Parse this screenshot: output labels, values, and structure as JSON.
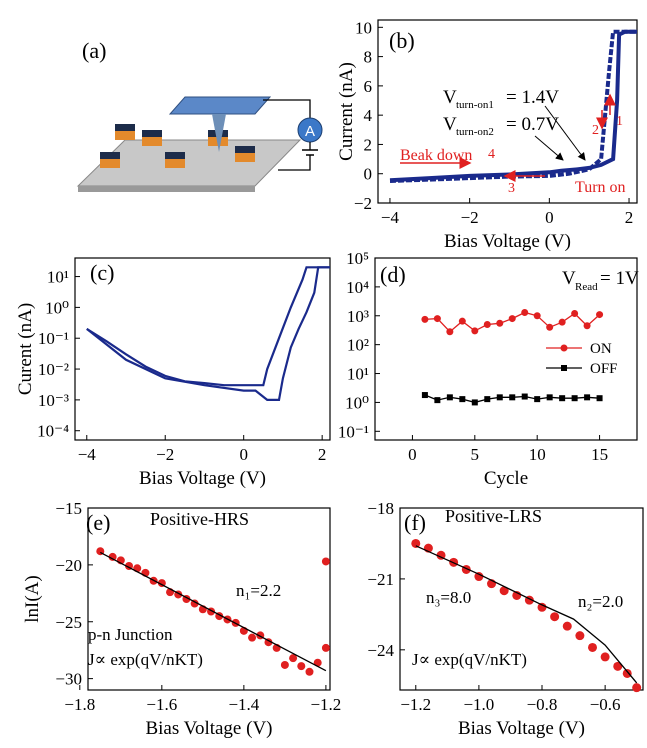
{
  "panels": {
    "a": {
      "label": "(a)",
      "meter_label": "A"
    },
    "b": {
      "label": "(b)",
      "xlabel": "Bias Voltage (V)",
      "ylabel": "Current (nA)",
      "von1_main": "V",
      "von1_sub": "turn-on1",
      "von1_val": "= 1.4V",
      "von2_main": "V",
      "von2_sub": "turn-on2",
      "von2_val": "= 0.7V",
      "breakdown": "Beak down",
      "turnon": "Turn on",
      "arrow_numbers": [
        "1",
        "2",
        "3",
        "4"
      ]
    },
    "c": {
      "label": "(c)",
      "xlabel": "Bias Voltage (V)",
      "ylabel": "Curent (nA)"
    },
    "d": {
      "label": "(d)",
      "xlabel": "Cycle",
      "vread_main": "V",
      "vread_sub": "Read",
      "vread_val": "= 1V",
      "legend_on": "ON",
      "legend_off": "OFF"
    },
    "e": {
      "label": "(e)",
      "title": "Positive-HRS",
      "xlabel": "Bias Voltage (V)",
      "ylabel": "lnI(A)",
      "n1": "n₁=2.2",
      "pn": "p-n Junction",
      "eq": "J∝ exp(qV/nKT)"
    },
    "f": {
      "label": "(f)",
      "title": "Positive-LRS",
      "xlabel": "Bias Voltage (V)",
      "n3": "n₃=8.0",
      "n2": "n₂=2.0",
      "eq": "J∝ exp(qV/nKT)"
    }
  },
  "colors": {
    "blue": "#1a2a8c",
    "red": "#e02020",
    "black": "#000000",
    "arrow_red": "#e02020"
  },
  "chart_data": [
    {
      "panel": "b",
      "type": "line",
      "xlim": [
        -4.3,
        2.2
      ],
      "ylim": [
        -2,
        10.5
      ],
      "xticks": [
        -4,
        -2,
        0,
        2
      ],
      "yticks": [
        -2,
        0,
        2,
        4,
        6,
        8,
        10
      ],
      "series": [
        {
          "x": [
            -4,
            -3,
            -2,
            -1,
            0,
            0.5,
            1,
            1.3,
            1.4,
            1.5,
            1.6,
            2.2
          ],
          "y": [
            -0.5,
            -0.4,
            -0.3,
            -0.2,
            -0.15,
            0,
            0.3,
            1,
            4,
            7,
            9.7,
            9.7
          ]
        },
        {
          "x": [
            2.2,
            1.9,
            1.75,
            1.7,
            1.6,
            1.3,
            1,
            0.7,
            0.3,
            0,
            -1,
            -2,
            -3,
            -4
          ],
          "y": [
            9.7,
            9.7,
            9.5,
            5,
            1,
            0.6,
            0.4,
            0.3,
            0.2,
            0.1,
            -0.05,
            -0.15,
            -0.3,
            -0.45
          ]
        }
      ]
    },
    {
      "panel": "c",
      "type": "line",
      "yscale": "log",
      "xlim": [
        -4.3,
        2.2
      ],
      "ylim": [
        5e-05,
        40
      ],
      "xticks": [
        -4,
        -2,
        0,
        2
      ],
      "yticks": [
        0.0001,
        0.001,
        0.01,
        0.1,
        1,
        10
      ],
      "ytick_labels": [
        "10⁻⁴",
        "10⁻³",
        "10⁻²",
        "10⁻¹",
        "10⁰",
        "10¹"
      ],
      "series": [
        {
          "x": [
            -4,
            -3.5,
            -3,
            -2.5,
            -2,
            -1.5,
            -1,
            -0.5,
            0,
            0.3,
            0.5,
            0.6,
            0.9,
            1.2,
            1.5,
            1.6,
            1.7,
            2.2
          ],
          "y": [
            0.2,
            0.08,
            0.03,
            0.012,
            0.006,
            0.004,
            0.0035,
            0.003,
            0.003,
            0.003,
            0.003,
            0.01,
            0.1,
            1,
            8,
            20,
            20,
            20
          ]
        },
        {
          "x": [
            2.2,
            1.9,
            1.8,
            1.6,
            1.4,
            1.2,
            1,
            0.9,
            0.6,
            0.3,
            0,
            -1,
            -2,
            -3,
            -4
          ],
          "y": [
            20,
            20,
            3,
            0.7,
            0.2,
            0.05,
            0.005,
            0.001,
            0.001,
            0.002,
            0.002,
            0.003,
            0.005,
            0.02,
            0.2
          ]
        }
      ]
    },
    {
      "panel": "d",
      "type": "scatter",
      "yscale": "log",
      "xlim": [
        -3,
        18
      ],
      "ylim": [
        0.05,
        100000
      ],
      "xticks": [
        0,
        5,
        10,
        15
      ],
      "yticks": [
        0.1,
        1,
        10,
        100,
        1000,
        10000,
        100000
      ],
      "ytick_labels": [
        "10⁻¹",
        "10⁰",
        "10¹",
        "10²",
        "10³",
        "10⁴",
        "10⁵"
      ],
      "x": [
        1,
        2,
        3,
        4,
        5,
        6,
        7,
        8,
        9,
        10,
        11,
        12,
        13,
        14,
        15
      ],
      "series": [
        {
          "name": "ON",
          "values": [
            750,
            800,
            280,
            650,
            300,
            500,
            550,
            800,
            1300,
            1000,
            400,
            600,
            1200,
            450,
            1100
          ]
        },
        {
          "name": "OFF",
          "values": [
            1.8,
            1.2,
            1.5,
            1.3,
            1.0,
            1.3,
            1.5,
            1.5,
            1.6,
            1.3,
            1.5,
            1.4,
            1.4,
            1.5,
            1.4
          ]
        }
      ]
    },
    {
      "panel": "e",
      "type": "scatter",
      "xlim": [
        -1.78,
        -1.19
      ],
      "ylim": [
        -31,
        -15
      ],
      "xticks": [
        -1.8,
        -1.6,
        -1.4,
        -1.2
      ],
      "yticks": [
        -15,
        -20,
        -25,
        -30
      ],
      "points_x": [
        -1.75,
        -1.72,
        -1.7,
        -1.68,
        -1.66,
        -1.64,
        -1.62,
        -1.6,
        -1.58,
        -1.56,
        -1.54,
        -1.52,
        -1.5,
        -1.48,
        -1.46,
        -1.44,
        -1.42,
        -1.4,
        -1.38,
        -1.36,
        -1.34,
        -1.32,
        -1.3,
        -1.28,
        -1.26,
        -1.24,
        -1.22,
        -1.2,
        -1.2
      ],
      "points_y": [
        -18.8,
        -19.3,
        -19.6,
        -20.1,
        -20.3,
        -20.7,
        -21.4,
        -21.6,
        -22.4,
        -22.6,
        -23.0,
        -23.4,
        -23.9,
        -24.1,
        -24.5,
        -24.8,
        -25.1,
        -25.8,
        -26.4,
        -26.2,
        -26.8,
        -27.3,
        -28.8,
        -28.2,
        -28.9,
        -29.4,
        -28.6,
        -19.7,
        -27.3
      ],
      "fit_x": [
        -1.75,
        -1.2
      ],
      "fit_y": [
        -18.9,
        -29.3
      ]
    },
    {
      "panel": "f",
      "type": "scatter",
      "xlim": [
        -1.25,
        -0.48
      ],
      "ylim": [
        -25.7,
        -18
      ],
      "xticks": [
        -1.2,
        -1.0,
        -0.8,
        -0.6
      ],
      "yticks": [
        -18,
        -21,
        -24
      ],
      "points_x": [
        -1.2,
        -1.16,
        -1.12,
        -1.08,
        -1.04,
        -1.0,
        -0.96,
        -0.92,
        -0.88,
        -0.84,
        -0.8,
        -0.76,
        -0.72,
        -0.68,
        -0.64,
        -0.6,
        -0.56,
        -0.53,
        -0.5
      ],
      "points_y": [
        -19.5,
        -19.7,
        -20.0,
        -20.3,
        -20.6,
        -20.9,
        -21.2,
        -21.5,
        -21.7,
        -21.9,
        -22.2,
        -22.6,
        -23.0,
        -23.4,
        -23.9,
        -24.3,
        -24.7,
        -25.0,
        -25.6
      ],
      "fit_x": [
        -1.2,
        -1.0,
        -0.8,
        -0.7,
        -0.6,
        -0.5
      ],
      "fit_y": [
        -19.6,
        -20.8,
        -22.1,
        -22.7,
        -23.8,
        -25.4
      ]
    }
  ]
}
